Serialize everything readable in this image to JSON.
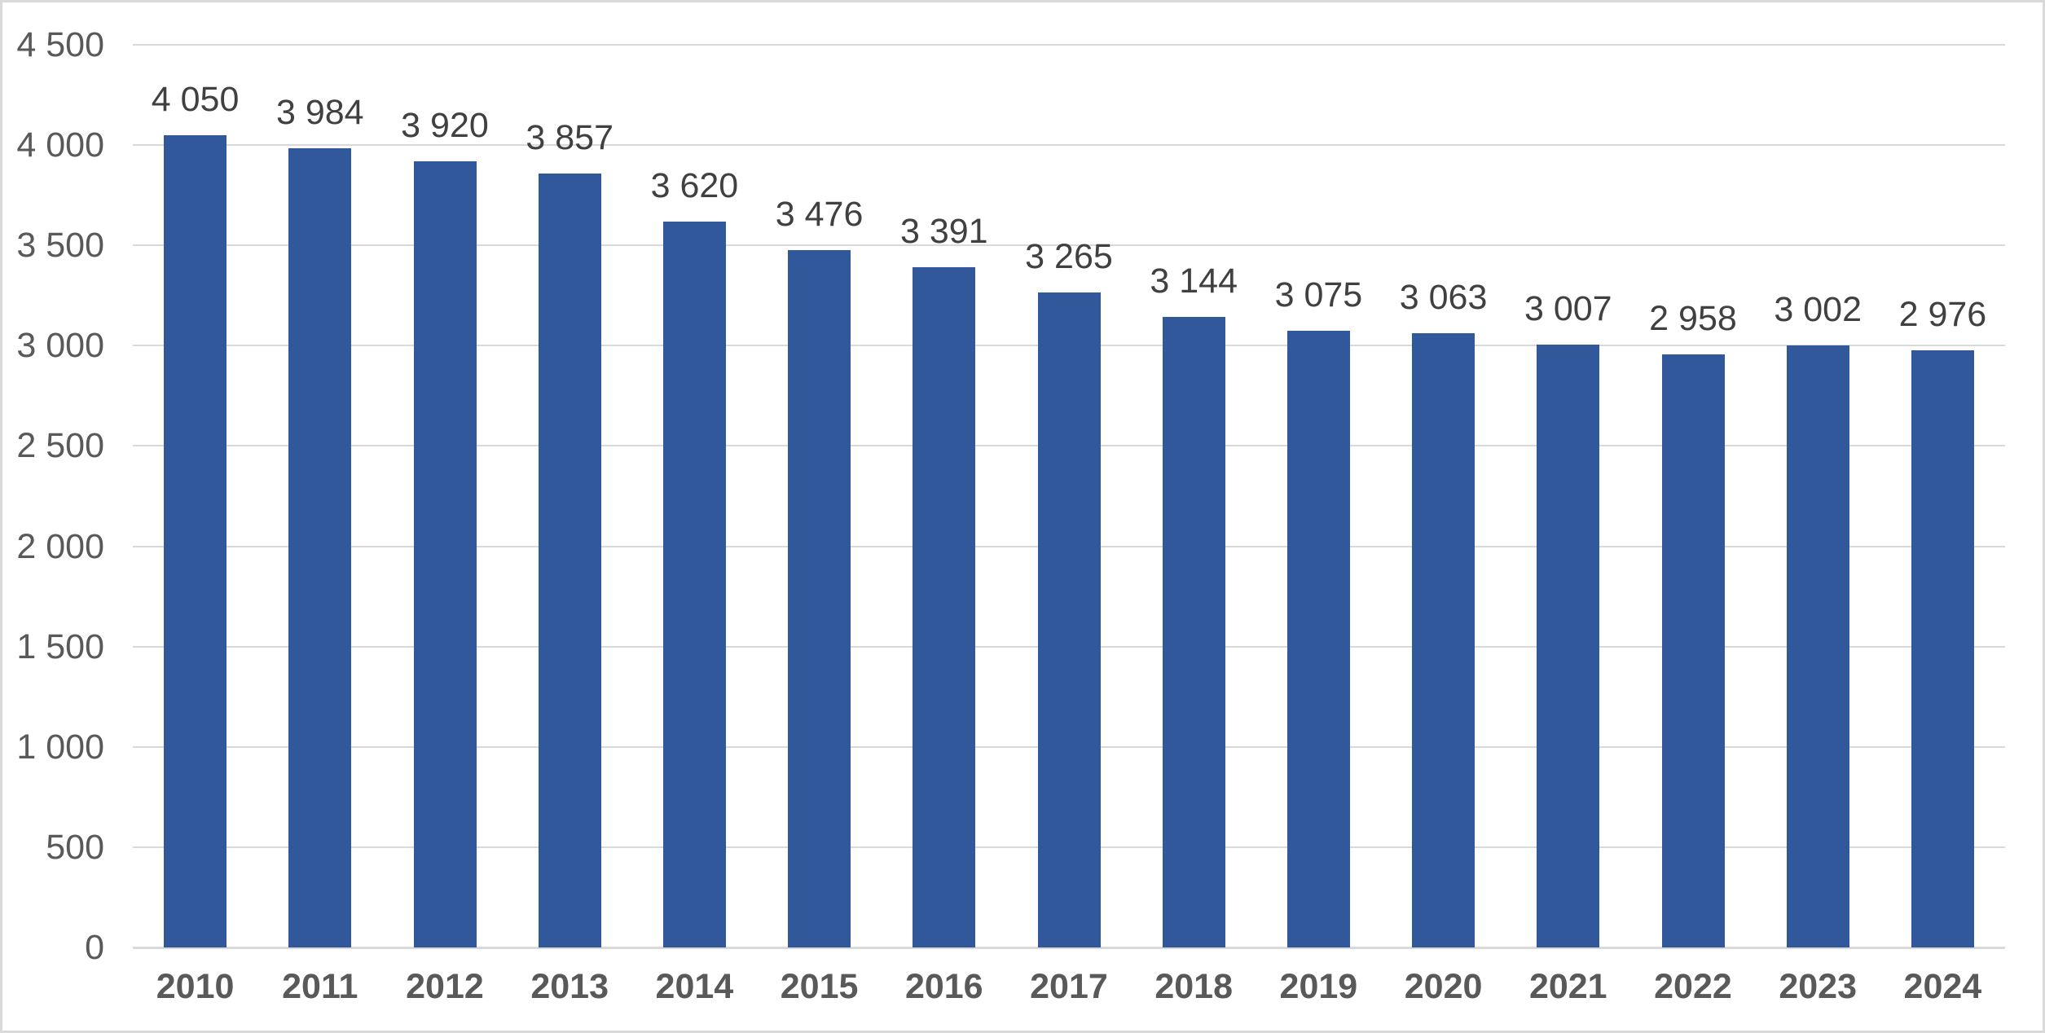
{
  "chart_data": {
    "type": "bar",
    "categories": [
      "2010",
      "2011",
      "2012",
      "2013",
      "2014",
      "2015",
      "2016",
      "2017",
      "2018",
      "2019",
      "2020",
      "2021",
      "2022",
      "2023",
      "2024"
    ],
    "values": [
      4050,
      3984,
      3920,
      3857,
      3620,
      3476,
      3391,
      3265,
      3144,
      3075,
      3063,
      3007,
      2958,
      3002,
      2976
    ],
    "value_labels": [
      "4 050",
      "3 984",
      "3 920",
      "3 857",
      "3 620",
      "3 476",
      "3 391",
      "3 265",
      "3 144",
      "3 075",
      "3 063",
      "3 007",
      "2 958",
      "3 002",
      "2 976"
    ],
    "y_tick_labels_top_down": [
      "4 500",
      "4 000",
      "3 500",
      "3 000",
      "2 500",
      "2 000",
      "1 500",
      "1 000",
      "500",
      "0"
    ],
    "ylim": [
      0,
      4500
    ],
    "y_tick_step": 500,
    "grid": "horizontal",
    "legend": "none",
    "colors": {
      "bar": "#30589A",
      "gridline": "#d9d9d9",
      "axis_line": "#d9d9d9",
      "data_label_text": "#404040",
      "tick_label_text": "#595959",
      "background": "#ffffff",
      "frame_border": "#d9d9d9"
    }
  }
}
